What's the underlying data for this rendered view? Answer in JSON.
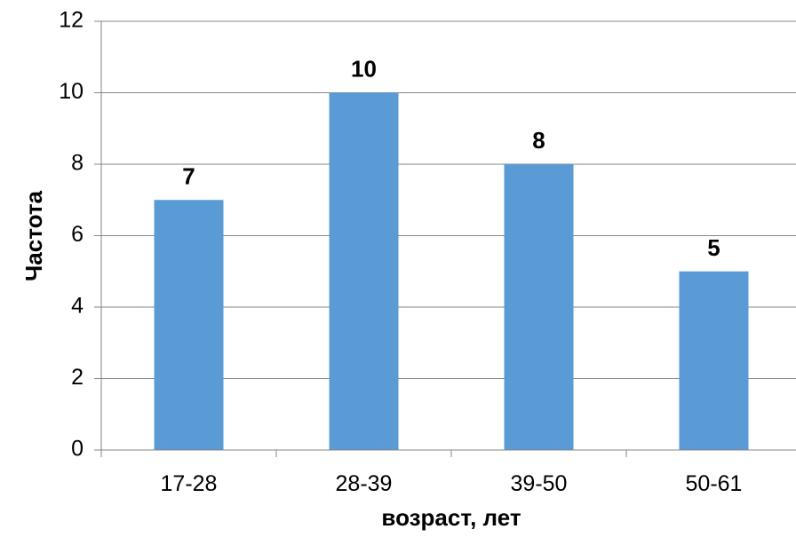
{
  "chart_data": {
    "type": "bar",
    "categories": [
      "17-28",
      "28-39",
      "39-50",
      "50-61"
    ],
    "values": [
      7,
      10,
      8,
      5
    ],
    "data_labels": [
      "7",
      "10",
      "8",
      "5"
    ],
    "title": "",
    "xlabel": "возраст, лет",
    "ylabel": "Частота",
    "ylim": [
      0,
      12
    ],
    "yticks": [
      "0",
      "2",
      "4",
      "6",
      "8",
      "10",
      "12"
    ],
    "grid": true,
    "legend": "none",
    "bar_color": "#5B9BD5",
    "grid_color": "#868686"
  }
}
